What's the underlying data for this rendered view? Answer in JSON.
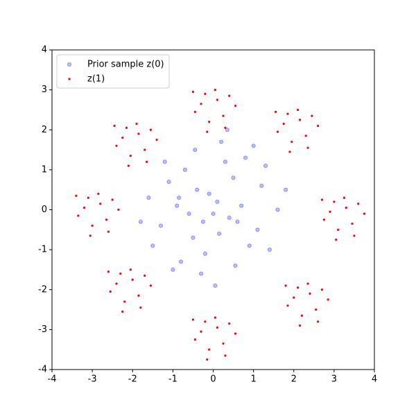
{
  "chart_data": {
    "type": "scatter",
    "xlim": [
      -4,
      4
    ],
    "ylim": [
      -4,
      4
    ],
    "xticks": [
      -4,
      -3,
      -2,
      -1,
      0,
      1,
      2,
      3,
      4
    ],
    "yticks": [
      -4,
      -3,
      -2,
      -1,
      0,
      1,
      2,
      3,
      4
    ],
    "legend": "upper left",
    "series": [
      {
        "name": "Prior sample z(0)",
        "color": "#0000ff",
        "x": [
          0.1,
          -0.4,
          0.6,
          -0.9,
          1.2,
          -1.3,
          0.3,
          -0.2,
          0.9,
          -0.7,
          1.6,
          -1.6,
          0.0,
          0.5,
          -0.5,
          1.1,
          -1.1,
          0.2,
          -0.3,
          0.8,
          -0.8,
          1.4,
          -1.5,
          0.4,
          -0.1,
          0.7,
          -0.6,
          1.8,
          -1.8,
          0.15,
          -0.25,
          1.0,
          -1.0,
          0.55,
          -0.45,
          1.3,
          -1.2,
          0.35,
          -0.85,
          0.05
        ],
        "values": [
          0.2,
          0.5,
          -0.3,
          0.1,
          0.6,
          -0.4,
          1.2,
          -1.1,
          -0.9,
          1.0,
          0.0,
          0.3,
          -0.1,
          0.8,
          -0.7,
          -0.5,
          0.7,
          1.7,
          -1.6,
          1.3,
          -1.3,
          -1.0,
          -0.9,
          -0.2,
          0.4,
          0.1,
          -0.1,
          0.5,
          -0.3,
          -0.6,
          -0.3,
          1.6,
          -1.5,
          -1.4,
          1.5,
          1.1,
          1.2,
          2.0,
          0.3,
          -1.9
        ]
      },
      {
        "name": "z(1)",
        "color": "#ff0000",
        "x": [
          0.1,
          -0.3,
          0.25,
          -0.1,
          0.4,
          -0.45,
          0.05,
          0.3,
          -0.2,
          -0.5,
          0.55,
          -0.15,
          2.15,
          1.75,
          2.3,
          1.95,
          2.45,
          1.6,
          2.1,
          2.35,
          1.85,
          1.55,
          2.6,
          1.9,
          3.3,
          2.9,
          3.45,
          3.1,
          3.6,
          2.75,
          3.25,
          3.5,
          3.0,
          2.7,
          3.75,
          3.05,
          2.4,
          2.0,
          2.55,
          2.2,
          2.7,
          1.85,
          2.35,
          2.6,
          2.1,
          1.8,
          2.85,
          2.15,
          0.1,
          -0.3,
          0.25,
          -0.1,
          0.4,
          -0.45,
          0.05,
          0.3,
          -0.2,
          -0.5,
          0.55,
          -0.15,
          -2.0,
          -2.4,
          -1.85,
          -2.2,
          -1.7,
          -2.55,
          -2.05,
          -1.8,
          -2.3,
          -2.6,
          -1.55,
          -2.25,
          -2.8,
          -3.2,
          -2.65,
          -3.0,
          -2.5,
          -3.35,
          -2.85,
          -2.6,
          -3.1,
          -3.4,
          -2.35,
          -3.05,
          -1.85,
          -2.25,
          -1.7,
          -2.05,
          -1.55,
          -2.4,
          -1.9,
          -1.65,
          -2.15,
          -2.45,
          -1.4,
          -2.1
        ],
        "values": [
          2.75,
          2.65,
          2.35,
          2.2,
          2.85,
          2.45,
          3.0,
          2.05,
          2.9,
          2.95,
          2.6,
          1.95,
          2.25,
          2.15,
          1.85,
          1.7,
          2.35,
          1.95,
          2.5,
          1.55,
          2.4,
          2.45,
          2.1,
          1.45,
          0.05,
          -0.05,
          -0.35,
          -0.5,
          0.15,
          -0.25,
          0.3,
          -0.65,
          0.2,
          0.25,
          -0.1,
          -0.75,
          -2.1,
          -2.2,
          -2.5,
          -2.65,
          -2.0,
          -2.4,
          -1.85,
          -2.8,
          -1.95,
          -1.9,
          -2.25,
          -2.9,
          -2.95,
          -3.05,
          -3.35,
          -3.5,
          -2.85,
          -3.25,
          -2.7,
          -3.65,
          -2.8,
          -2.75,
          -3.1,
          -3.75,
          -1.75,
          -1.85,
          -2.15,
          -2.3,
          -1.65,
          -2.05,
          -1.5,
          -2.45,
          -1.6,
          -1.55,
          -1.9,
          -2.55,
          0.15,
          0.05,
          -0.25,
          -0.4,
          0.25,
          -0.15,
          0.4,
          -0.55,
          0.3,
          0.35,
          0.0,
          -0.65,
          1.9,
          1.8,
          1.5,
          1.35,
          2.0,
          1.6,
          2.15,
          1.2,
          2.05,
          2.1,
          1.75,
          1.1
        ]
      }
    ]
  }
}
